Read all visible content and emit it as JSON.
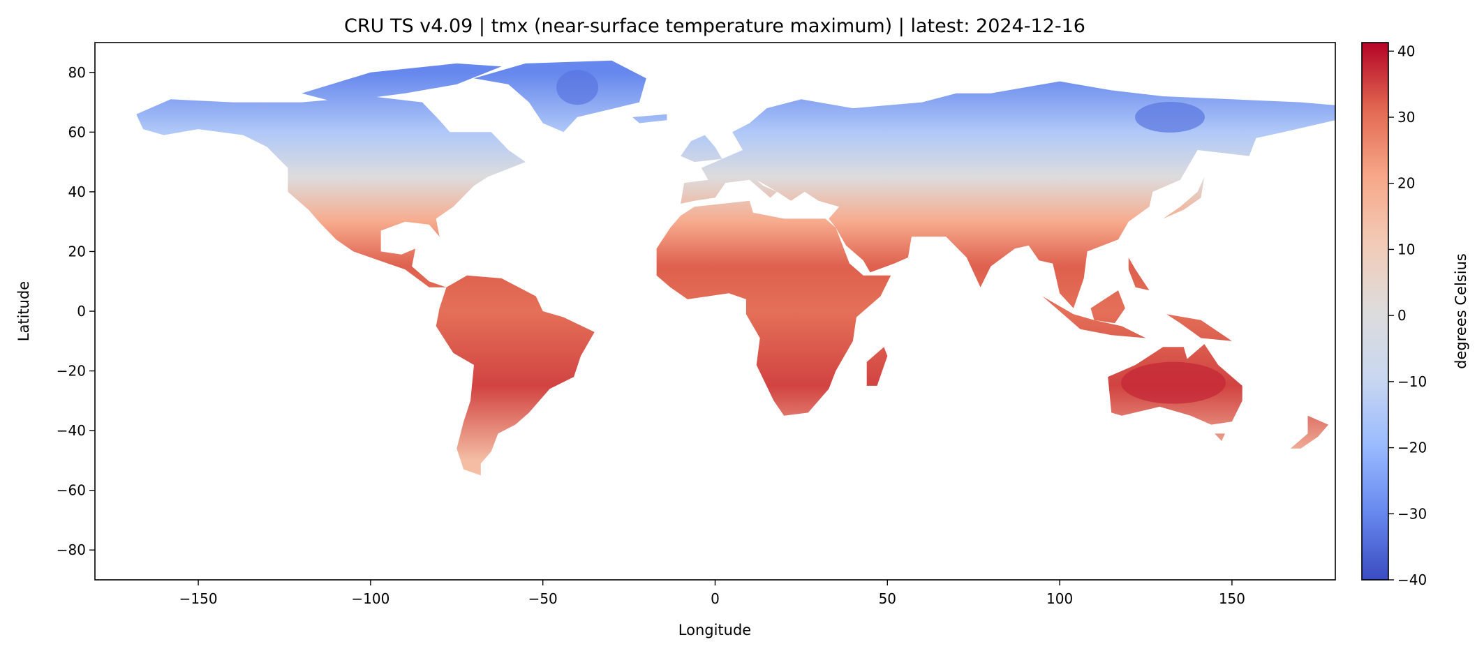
{
  "chart_data": {
    "type": "heatmap",
    "title": "CRU TS v4.09 | tmx (near-surface temperature maximum) | latest: 2024-12-16",
    "xlabel": "Longitude",
    "ylabel": "Latitude",
    "xlim": [
      -180,
      180
    ],
    "ylim": [
      -90,
      90
    ],
    "xticks": [
      -150,
      -100,
      -50,
      0,
      50,
      100,
      150
    ],
    "xtick_labels": [
      "−150",
      "−100",
      "−50",
      "0",
      "50",
      "100",
      "150"
    ],
    "yticks": [
      80,
      60,
      40,
      20,
      0,
      -20,
      -40,
      -60,
      -80
    ],
    "ytick_labels": [
      "80",
      "60",
      "40",
      "20",
      "0",
      "−20",
      "−40",
      "−60",
      "−80"
    ],
    "grid": false,
    "colormap": "coolwarm",
    "colorbar": {
      "label": "degrees Celsius",
      "range": [
        -40,
        41.3
      ],
      "ticks": [
        40,
        30,
        20,
        10,
        0,
        -10,
        -20,
        -30,
        -40
      ],
      "tick_labels": [
        "40",
        "30",
        "20",
        "10",
        "0",
        "−10",
        "−20",
        "−30",
        "−40"
      ],
      "colors": [
        "#3b4cc0",
        "#6788ee",
        "#9abbff",
        "#c9d7f0",
        "#dddcdc",
        "#f2cbb7",
        "#f7a889",
        "#e26952",
        "#b40426"
      ]
    },
    "approx_zonal_values": {
      "latitudes": [
        80,
        60,
        45,
        30,
        15,
        0,
        -25,
        -50
      ],
      "tmx_celsius": [
        -30,
        -15,
        0,
        20,
        32,
        30,
        35,
        15
      ]
    }
  }
}
